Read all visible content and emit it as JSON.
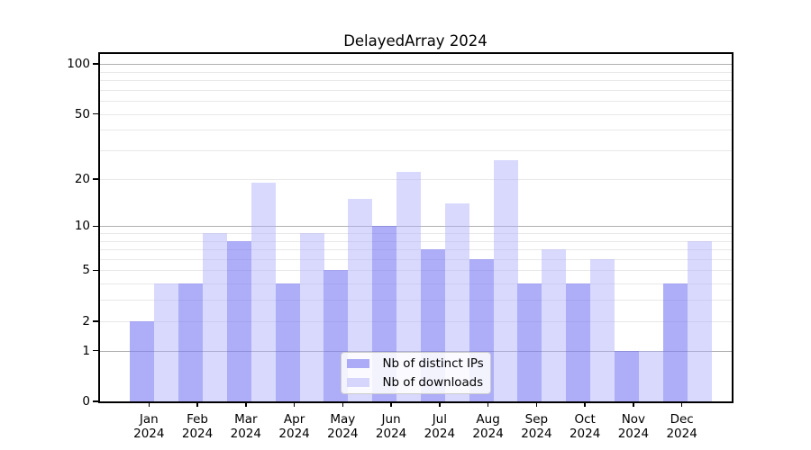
{
  "chart_data": {
    "type": "bar",
    "title": "DelayedArray 2024",
    "categories": [
      "Jan",
      "Feb",
      "Mar",
      "Apr",
      "May",
      "Jun",
      "Jul",
      "Aug",
      "Sep",
      "Oct",
      "Nov",
      "Dec"
    ],
    "category_year": "2024",
    "series": [
      {
        "name": "Nb of distinct IPs",
        "color": "#7a7af3",
        "alpha": 0.62,
        "values": [
          2,
          4,
          8,
          4,
          5,
          10,
          7,
          6,
          4,
          4,
          1,
          4
        ]
      },
      {
        "name": "Nb of downloads",
        "color": "#afaffa",
        "alpha": 0.47,
        "values": [
          4,
          9,
          19,
          9,
          15,
          22,
          14,
          26,
          7,
          6,
          1,
          8
        ]
      }
    ],
    "y_axis": {
      "scale": "log1p",
      "tick_values": [
        0,
        1,
        2,
        5,
        10,
        20,
        50,
        100
      ],
      "tick_labels": [
        "0",
        "1",
        "2",
        "5",
        "10",
        "20",
        "50",
        "100"
      ],
      "major_gridlines": [
        1,
        10,
        100
      ],
      "minor_gridlines": [
        2,
        3,
        4,
        5,
        6,
        7,
        8,
        9,
        20,
        30,
        40,
        50,
        60,
        70,
        80,
        90
      ],
      "top_value": 100
    },
    "legend": {
      "position": "inside-bottom-center",
      "entries": [
        "Nb of distinct IPs",
        "Nb of downloads"
      ]
    },
    "grid": "on"
  },
  "colors": {
    "major_grid": "#b0b0b0",
    "minor_grid": "#e8e8e8",
    "spine": "#000000",
    "text": "#000000",
    "legend_border": "#cccccc",
    "legend_bg": "#ffffff"
  }
}
